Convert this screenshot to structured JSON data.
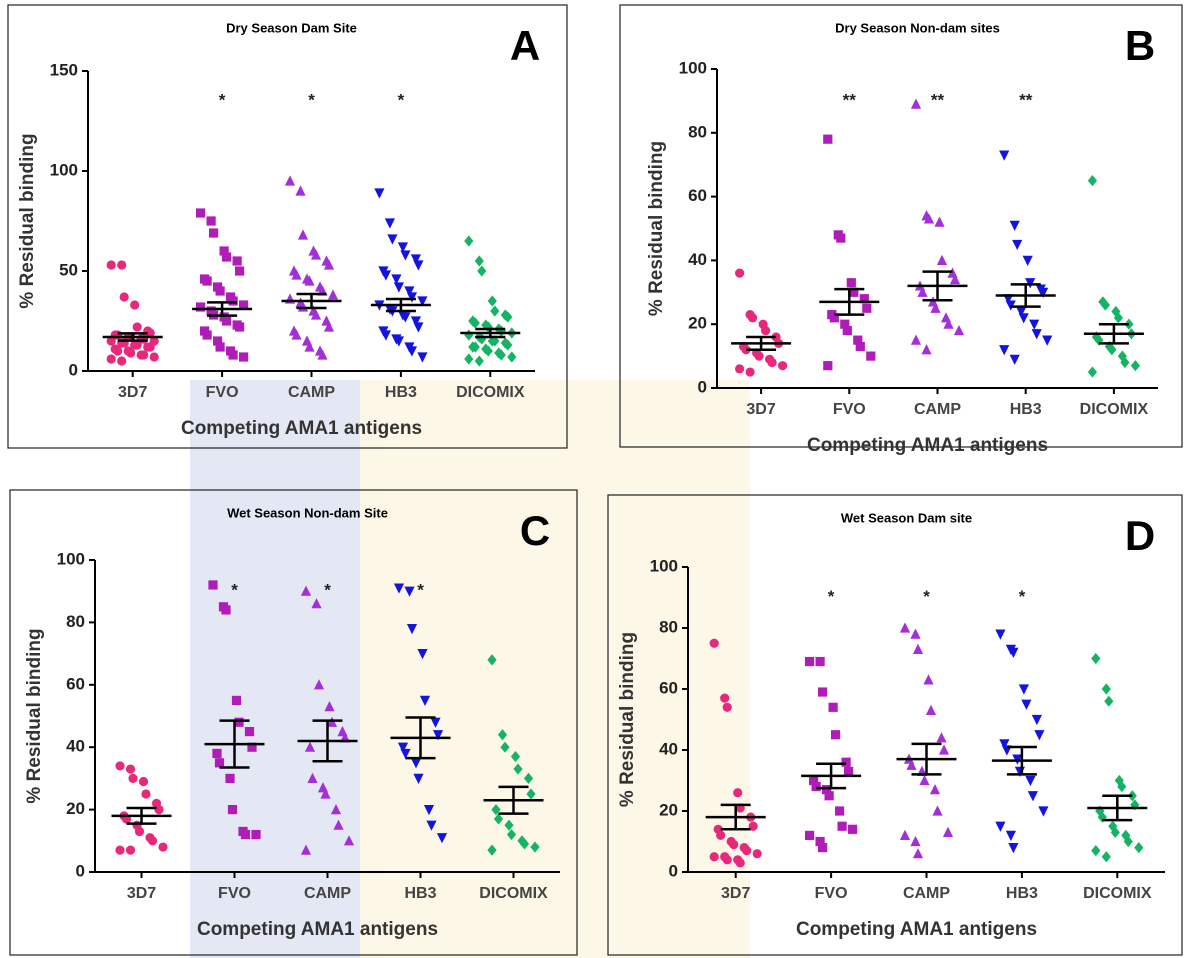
{
  "chart_data": [
    {
      "type": "dotplot",
      "title": "Dry Season Dam Site",
      "panel_label": "A",
      "xlabel": "Competing AMA1 antigens",
      "ylabel": "% Residual binding",
      "categories": [
        "3D7",
        "FVO",
        "CAMP",
        "HB3",
        "DICOMIX"
      ],
      "significance": [
        null,
        "*",
        "*",
        "*",
        null
      ],
      "ylim": [
        0,
        150
      ],
      "yticks": [
        0,
        50,
        100,
        150
      ],
      "groups": [
        {
          "color": "#e8287a",
          "marker": "circle",
          "values": [
            53,
            53,
            37,
            33,
            22,
            20,
            19,
            18,
            18,
            17,
            17,
            16,
            16,
            15,
            15,
            14,
            14,
            13,
            13,
            12,
            12,
            11,
            10,
            10,
            9,
            8,
            8,
            7,
            6,
            5
          ],
          "mean": 17,
          "sem": 1.8
        },
        {
          "color": "#b01cb8",
          "marker": "square",
          "values": [
            79,
            75,
            69,
            60,
            57,
            55,
            50,
            46,
            45,
            42,
            40,
            37,
            35,
            33,
            32,
            30,
            28,
            27,
            25,
            23,
            22,
            20,
            18,
            15,
            12,
            10,
            8,
            7
          ],
          "mean": 31,
          "sem": 3.3
        },
        {
          "color": "#a42ed8",
          "marker": "triangle-up",
          "values": [
            95,
            90,
            68,
            60,
            58,
            55,
            53,
            50,
            48,
            46,
            45,
            42,
            40,
            38,
            36,
            34,
            32,
            30,
            28,
            25,
            22,
            20,
            18,
            15,
            12,
            10,
            8
          ],
          "mean": 35,
          "sem": 3.5
        },
        {
          "color": "#1414e0",
          "marker": "triangle-down",
          "values": [
            89,
            74,
            66,
            62,
            58,
            56,
            53,
            50,
            48,
            46,
            42,
            40,
            37,
            35,
            33,
            31,
            30,
            28,
            27,
            25,
            22,
            20,
            18,
            16,
            15,
            12,
            10,
            7
          ],
          "mean": 33,
          "sem": 3
        },
        {
          "color": "#14b464",
          "marker": "diamond",
          "values": [
            65,
            55,
            50,
            35,
            30,
            28,
            27,
            25,
            24,
            23,
            22,
            21,
            20,
            19,
            18,
            17,
            16,
            15,
            15,
            14,
            13,
            12,
            12,
            11,
            10,
            9,
            8,
            7,
            6,
            5
          ],
          "mean": 19,
          "sem": 2
        }
      ]
    },
    {
      "type": "dotplot",
      "title": "Dry Season Non-dam sites",
      "panel_label": "B",
      "xlabel": "Competing AMA1 antigens",
      "ylabel": "% Residual binding",
      "categories": [
        "3D7",
        "FVO",
        "CAMP",
        "HB3",
        "DICOMIX"
      ],
      "significance": [
        null,
        "**",
        "**",
        "**",
        null
      ],
      "ylim": [
        0,
        100
      ],
      "yticks": [
        0,
        20,
        40,
        60,
        80,
        100
      ],
      "groups": [
        {
          "color": "#e8287a",
          "marker": "circle",
          "values": [
            36,
            23,
            22,
            20,
            18,
            16,
            14,
            13,
            12,
            11,
            10,
            9,
            8,
            7,
            6,
            5
          ],
          "mean": 14,
          "sem": 2
        },
        {
          "color": "#b01cb8",
          "marker": "square",
          "values": [
            78,
            48,
            47,
            33,
            30,
            28,
            25,
            23,
            22,
            20,
            18,
            15,
            13,
            10,
            7
          ],
          "mean": 27,
          "sem": 4
        },
        {
          "color": "#a42ed8",
          "marker": "triangle-up",
          "values": [
            89,
            54,
            53,
            52,
            40,
            36,
            34,
            32,
            30,
            27,
            25,
            22,
            20,
            18,
            15,
            12
          ],
          "mean": 32,
          "sem": 4.5
        },
        {
          "color": "#1414e0",
          "marker": "triangle-down",
          "values": [
            73,
            51,
            45,
            40,
            33,
            31,
            30,
            28,
            26,
            24,
            22,
            20,
            17,
            15,
            12,
            9
          ],
          "mean": 29,
          "sem": 3.5
        },
        {
          "color": "#14b464",
          "marker": "diamond",
          "values": [
            65,
            27,
            26,
            24,
            22,
            20,
            17,
            16,
            15,
            13,
            12,
            10,
            8,
            7,
            5
          ],
          "mean": 17,
          "sem": 3
        }
      ]
    },
    {
      "type": "dotplot",
      "title": "Wet Season Non-dam Site",
      "panel_label": "C",
      "xlabel": "Competing AMA1 antigens",
      "ylabel": "% Residual binding",
      "categories": [
        "3D7",
        "FVO",
        "CAMP",
        "HB3",
        "DICOMIX"
      ],
      "significance": [
        null,
        "*",
        "*",
        "*",
        null
      ],
      "ylim": [
        0,
        100
      ],
      "yticks": [
        0,
        20,
        40,
        60,
        80,
        100
      ],
      "groups": [
        {
          "color": "#e8287a",
          "marker": "circle",
          "values": [
            34,
            33,
            30,
            29,
            25,
            22,
            20,
            18,
            17,
            15,
            13,
            11,
            10,
            8,
            7,
            7
          ],
          "mean": 18,
          "sem": 2.5
        },
        {
          "color": "#b01cb8",
          "marker": "square",
          "values": [
            92,
            85,
            84,
            55,
            48,
            45,
            40,
            38,
            35,
            30,
            20,
            13,
            12,
            12
          ],
          "mean": 41,
          "sem": 7.5
        },
        {
          "color": "#a42ed8",
          "marker": "triangle-up",
          "values": [
            90,
            86,
            60,
            53,
            48,
            45,
            43,
            40,
            30,
            27,
            25,
            20,
            15,
            10,
            7
          ],
          "mean": 42,
          "sem": 6.5
        },
        {
          "color": "#1414e0",
          "marker": "triangle-down",
          "values": [
            91,
            90,
            78,
            70,
            55,
            48,
            44,
            40,
            38,
            35,
            30,
            20,
            15,
            11
          ],
          "mean": 43,
          "sem": 6.5
        },
        {
          "color": "#14b464",
          "marker": "diamond",
          "values": [
            68,
            44,
            40,
            37,
            33,
            30,
            25,
            20,
            17,
            15,
            12,
            10,
            9,
            8,
            7
          ],
          "mean": 23,
          "sem": 4.3
        }
      ]
    },
    {
      "type": "dotplot",
      "title": "Wet Season Dam site",
      "panel_label": "D",
      "xlabel": "Competing AMA1 antigens",
      "ylabel": "% Residual binding",
      "categories": [
        "3D7",
        "FVO",
        "CAMP",
        "HB3",
        "DICOMIX"
      ],
      "significance": [
        null,
        "*",
        "*",
        "*",
        null
      ],
      "ylim": [
        0,
        100
      ],
      "yticks": [
        0,
        20,
        40,
        60,
        80,
        100
      ],
      "groups": [
        {
          "color": "#e8287a",
          "marker": "circle",
          "values": [
            75,
            57,
            54,
            26,
            21,
            18,
            15,
            14,
            12,
            10,
            9,
            8,
            7,
            6,
            5,
            5,
            4,
            4,
            3
          ],
          "mean": 18,
          "sem": 4
        },
        {
          "color": "#b01cb8",
          "marker": "square",
          "values": [
            69,
            69,
            59,
            54,
            45,
            36,
            33,
            30,
            28,
            27,
            25,
            20,
            15,
            14,
            12,
            10,
            8
          ],
          "mean": 31.5,
          "sem": 4
        },
        {
          "color": "#a42ed8",
          "marker": "triangle-up",
          "values": [
            80,
            78,
            73,
            63,
            53,
            44,
            40,
            37,
            35,
            33,
            30,
            27,
            20,
            13,
            12,
            10,
            6
          ],
          "mean": 37,
          "sem": 5
        },
        {
          "color": "#1414e0",
          "marker": "triangle-down",
          "values": [
            78,
            73,
            72,
            60,
            55,
            50,
            45,
            42,
            40,
            37,
            33,
            30,
            25,
            20,
            15,
            12,
            8
          ],
          "mean": 36.5,
          "sem": 4.5
        },
        {
          "color": "#14b464",
          "marker": "diamond",
          "values": [
            70,
            60,
            56,
            30,
            28,
            25,
            22,
            20,
            18,
            15,
            13,
            12,
            10,
            8,
            7,
            5
          ],
          "mean": 21,
          "sem": 4
        }
      ]
    }
  ]
}
